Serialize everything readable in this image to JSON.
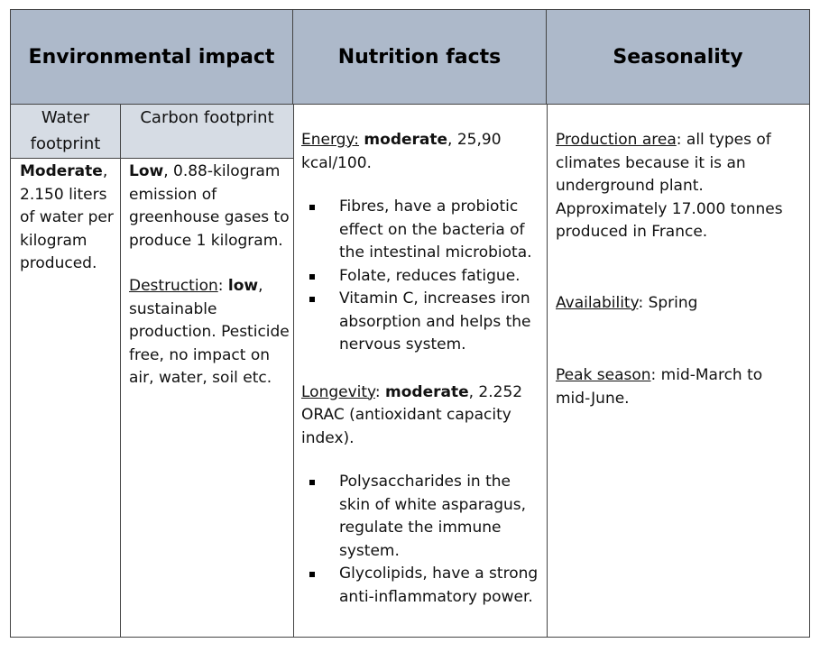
{
  "headers": {
    "environmental": "Environmental impact",
    "nutrition": "Nutrition facts",
    "seasonality": "Seasonality"
  },
  "subheaders": {
    "water": "Water footprint",
    "carbon": "Carbon footprint"
  },
  "water": {
    "level": "Moderate",
    "text": ", 2.150 liters of water per kilogram produced."
  },
  "carbon": {
    "level": "Low",
    "text": ", 0.88-kilogram emission of greenhouse gases to produce 1 kilogram."
  },
  "destruction": {
    "label": "Destruction",
    "sep": ": ",
    "level": "low",
    "text": ", sustainable production. Pesticide free, no impact on air, water, soil etc."
  },
  "energy": {
    "label": "Energy:",
    "level": "moderate",
    "text": ", 25,90 kcal/100.",
    "bullets": [
      "Fibres, have a probiotic effect on the bacteria of the intestinal microbiota.",
      "Folate, reduces fatigue.",
      "Vitamin C, increases iron absorption and helps the nervous system."
    ]
  },
  "longevity": {
    "label": "Longevity",
    "sep": ": ",
    "level": "moderate",
    "text": ", 2.252 ORAC (antioxidant capacity index).",
    "bullets": [
      "Polysaccharides in the skin of white asparagus, regulate the immune system.",
      "Glycolipids, have a strong anti-inflammatory power."
    ]
  },
  "production": {
    "label": "Production area",
    "text": ":  all types of climates because it is an underground plant. Approximately 17.000 tonnes produced in France."
  },
  "availability": {
    "label": "Availability",
    "text": ": Spring"
  },
  "peak": {
    "label": "Peak season",
    "text": ": mid-March to mid-June."
  }
}
